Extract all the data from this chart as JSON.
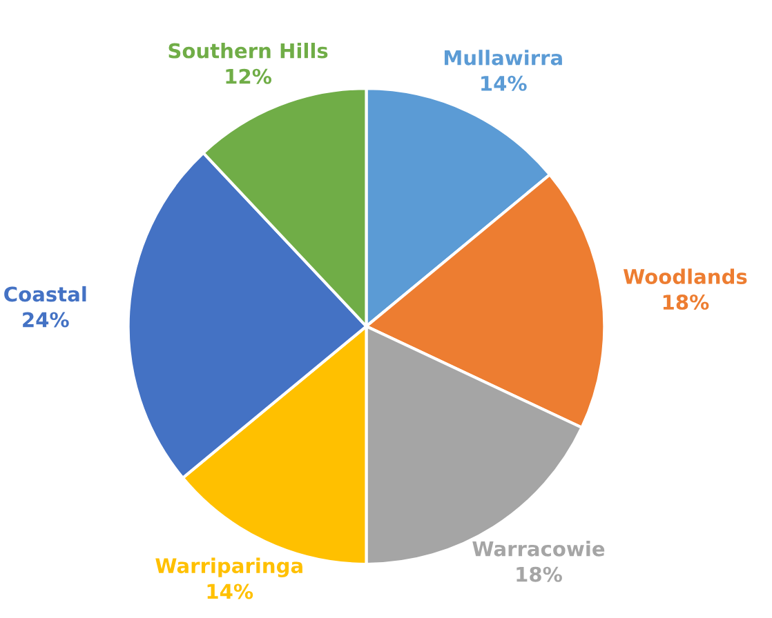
{
  "chart_data": {
    "type": "pie",
    "categories": [
      "Mullawirra",
      "Woodlands",
      "Warracowie",
      "Warriparinga",
      "Coastal",
      "Southern Hills"
    ],
    "values": [
      14,
      18,
      18,
      14,
      24,
      12
    ],
    "colors": [
      "#5b9bd5",
      "#ed7d31",
      "#a5a5a5",
      "#ffc000",
      "#4472c4",
      "#70ad47"
    ],
    "value_labels": [
      "14%",
      "18%",
      "18%",
      "14%",
      "24%",
      "12%"
    ]
  }
}
